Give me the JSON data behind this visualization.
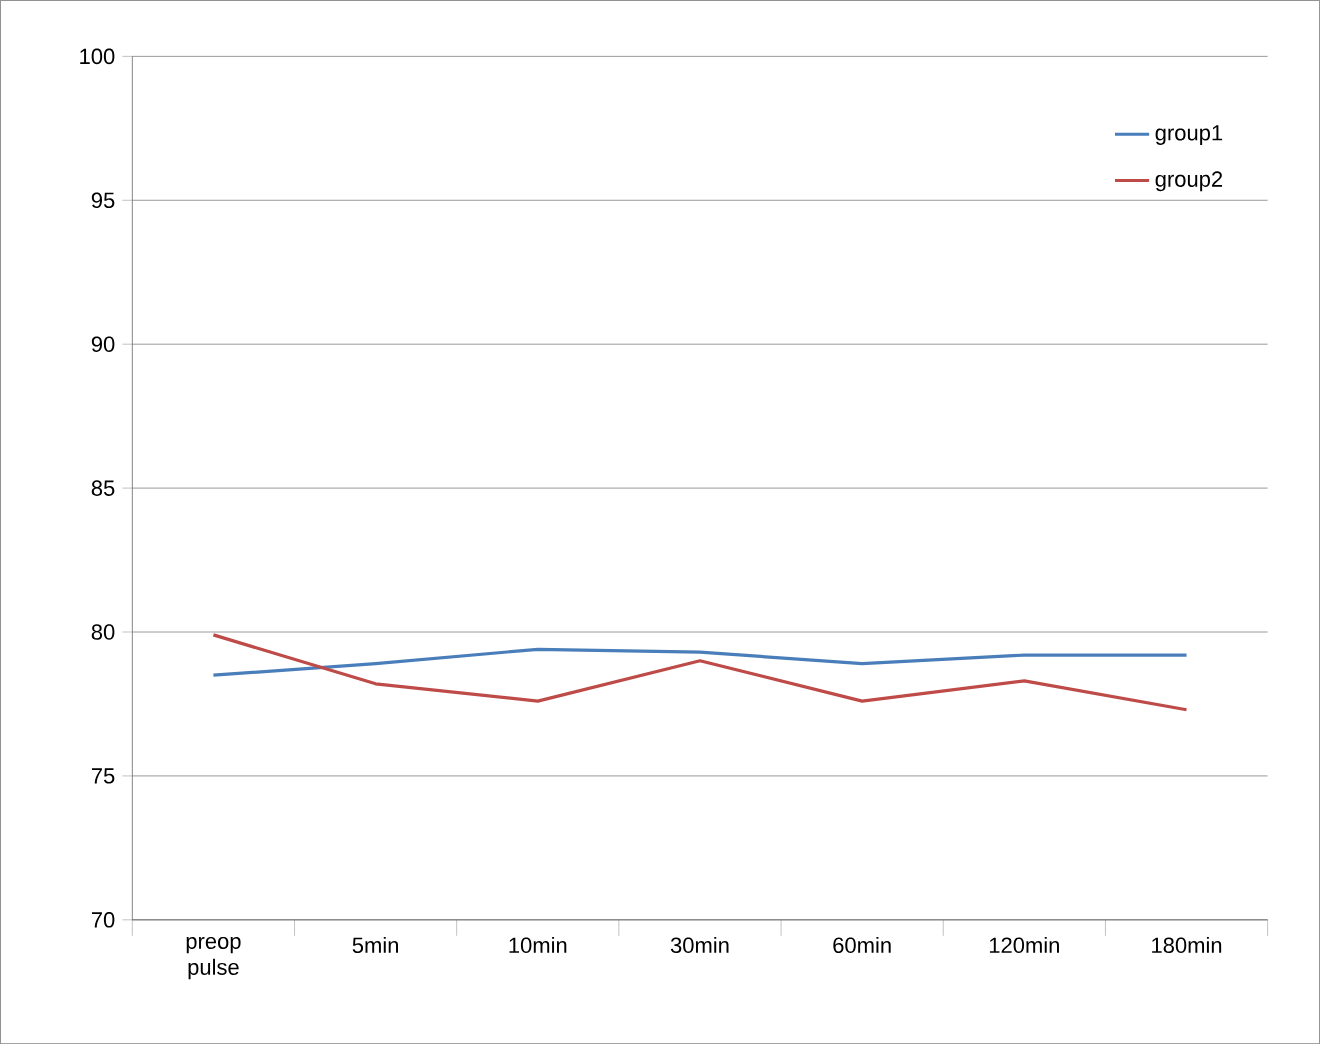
{
  "chart_data": {
    "type": "line",
    "categories": [
      "preop pulse",
      "5min",
      "10min",
      "30min",
      "60min",
      "120min",
      "180min"
    ],
    "series": [
      {
        "name": "group1",
        "color": "#4a7ebb",
        "values": [
          78.5,
          78.9,
          79.4,
          79.3,
          78.9,
          79.2,
          79.2
        ]
      },
      {
        "name": "group2",
        "color": "#be4b48",
        "values": [
          79.9,
          78.2,
          77.6,
          79.0,
          77.6,
          78.3,
          77.3
        ]
      }
    ],
    "ylim": [
      70,
      100
    ],
    "yticks": [
      70,
      75,
      80,
      85,
      90,
      95,
      100
    ],
    "grid": "y",
    "legend": "top right",
    "marker": "none",
    "line_style": "solid"
  }
}
